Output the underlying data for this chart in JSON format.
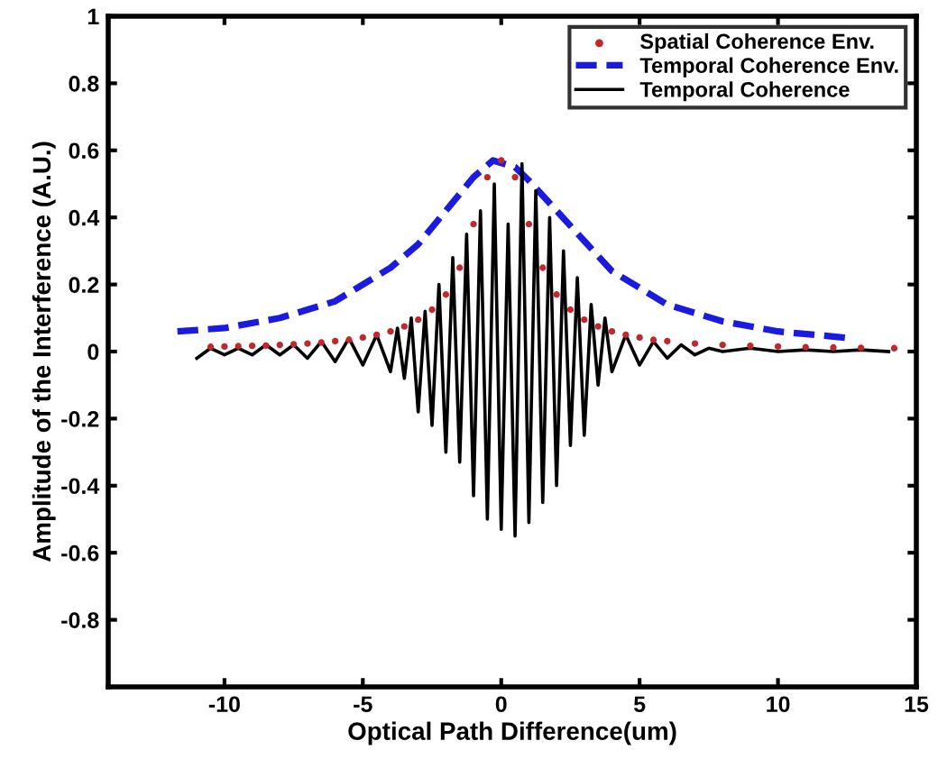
{
  "chart_data": {
    "type": "line",
    "xlabel": "Optical Path Difference(um)",
    "ylabel": "Amplitude of the Interference (A.U.)",
    "xlim": [
      -14.2,
      15
    ],
    "xticks": [
      -10,
      -5,
      0,
      5,
      10,
      15
    ],
    "ylim": [
      -1,
      1
    ],
    "yticks": [
      -0.8,
      -0.6,
      -0.4,
      -0.2,
      0,
      0.2,
      0.4,
      0.6,
      0.8,
      1
    ],
    "grid": false,
    "legend": "top right",
    "series": [
      {
        "name": "Spatial Coherence Env.",
        "type": "scatter",
        "marker": "circle",
        "color": "#c0282d",
        "x": [
          -10.5,
          -10,
          -9.5,
          -9,
          -8.5,
          -8,
          -7.5,
          -7,
          -6.5,
          -6,
          -5.5,
          -5,
          -4.5,
          -4,
          -3.5,
          -3,
          -2.5,
          -2,
          -1.5,
          -1,
          -0.5,
          0,
          0.5,
          1,
          1.5,
          2,
          2.5,
          3,
          3.5,
          4,
          4.5,
          5,
          5.5,
          6,
          7,
          8,
          9,
          10,
          11,
          12,
          13,
          14.2
        ],
        "values": [
          0.014,
          0.015,
          0.016,
          0.017,
          0.018,
          0.02,
          0.022,
          0.024,
          0.027,
          0.031,
          0.035,
          0.042,
          0.05,
          0.06,
          0.075,
          0.095,
          0.125,
          0.17,
          0.25,
          0.38,
          0.52,
          0.57,
          0.52,
          0.38,
          0.25,
          0.17,
          0.125,
          0.095,
          0.075,
          0.06,
          0.05,
          0.042,
          0.035,
          0.031,
          0.024,
          0.02,
          0.017,
          0.015,
          0.013,
          0.012,
          0.011,
          0.01
        ]
      },
      {
        "name": "Temporal Coherence Env.",
        "type": "line",
        "line_style": "dashed",
        "color": "#1a1ae0",
        "x": [
          -11.7,
          -10,
          -8,
          -6,
          -4,
          -3,
          -2,
          -1,
          -0.3,
          0.5,
          1,
          2,
          3,
          4,
          6,
          8,
          10,
          12.6
        ],
        "values": [
          0.06,
          0.07,
          0.1,
          0.15,
          0.25,
          0.32,
          0.42,
          0.52,
          0.57,
          0.55,
          0.51,
          0.42,
          0.33,
          0.24,
          0.14,
          0.09,
          0.06,
          0.04
        ]
      },
      {
        "name": "Temporal Coherence",
        "line_style": "solid",
        "color": "#000000",
        "x": [
          -11,
          -10.5,
          -10,
          -9.5,
          -9,
          -8.5,
          -8,
          -7.5,
          -7,
          -6.5,
          -6,
          -5.5,
          -5,
          -4.5,
          -4,
          -3.75,
          -3.5,
          -3.25,
          -3,
          -2.75,
          -2.5,
          -2.25,
          -2,
          -1.75,
          -1.5,
          -1.25,
          -1,
          -0.75,
          -0.5,
          -0.25,
          0,
          0.25,
          0.5,
          0.75,
          1,
          1.25,
          1.5,
          1.75,
          2,
          2.25,
          2.5,
          2.75,
          3,
          3.25,
          3.5,
          3.75,
          4,
          4.5,
          5,
          5.5,
          6,
          6.5,
          7,
          7.5,
          8,
          9,
          10,
          11,
          12,
          13,
          14
        ],
        "values": [
          -0.02,
          0.01,
          -0.01,
          0.01,
          -0.01,
          0.02,
          -0.01,
          0.02,
          -0.02,
          0.03,
          -0.03,
          0.04,
          -0.04,
          0.05,
          -0.06,
          0.07,
          -0.08,
          0.1,
          -0.18,
          0.12,
          -0.22,
          0.2,
          -0.3,
          0.28,
          -0.33,
          0.35,
          -0.43,
          0.42,
          -0.5,
          0.5,
          -0.53,
          0.38,
          -0.55,
          0.56,
          -0.51,
          0.48,
          -0.45,
          0.4,
          -0.4,
          0.3,
          -0.28,
          0.22,
          -0.25,
          0.14,
          -0.1,
          0.1,
          -0.06,
          0.05,
          -0.04,
          0.03,
          -0.02,
          0.02,
          -0.01,
          0.01,
          0.0,
          0.01,
          0.0,
          0.005,
          0.0,
          0.005,
          0.0
        ]
      }
    ]
  }
}
